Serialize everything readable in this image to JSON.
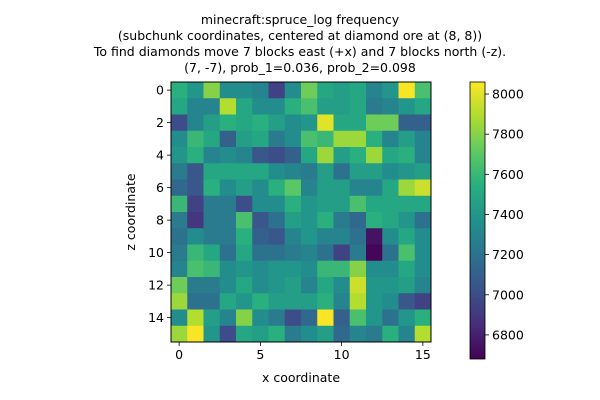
{
  "chart_data": {
    "type": "heatmap",
    "title_lines": [
      "minecraft:spruce_log frequency",
      "(subchunk coordinates, centered at diamond ore at (8, 8))",
      "To find diamonds move 7 blocks east (+x) and 7 blocks north (-z).",
      "(7, -7), prob_1=0.036, prob_2=0.098"
    ],
    "xlabel": "x coordinate",
    "ylabel": "z coordinate",
    "x_ticks": [
      0,
      5,
      10,
      15
    ],
    "y_ticks": [
      0,
      2,
      4,
      6,
      8,
      10,
      12,
      14
    ],
    "x_range": [
      -0.5,
      15.5
    ],
    "y_range": [
      -0.5,
      15.5
    ],
    "colorbar": {
      "colormap": "viridis",
      "vmin": 6680,
      "vmax": 8060,
      "ticks": [
        6800,
        7000,
        7200,
        7400,
        7600,
        7800,
        8000
      ]
    },
    "values": [
      [
        7550,
        7400,
        7800,
        7350,
        7350,
        7300,
        6950,
        7350,
        7750,
        7500,
        7450,
        7500,
        7300,
        7400,
        8050,
        7650
      ],
      [
        7500,
        7300,
        7300,
        7900,
        7500,
        7350,
        7350,
        7550,
        7650,
        7450,
        7450,
        7500,
        7250,
        7300,
        7400,
        7500
      ],
      [
        7000,
        7300,
        7450,
        7550,
        7500,
        7550,
        7450,
        7350,
        7400,
        8000,
        7500,
        7500,
        7750,
        7750,
        7100,
        7100
      ],
      [
        7350,
        7600,
        7500,
        7100,
        7450,
        7500,
        7250,
        7350,
        7650,
        7600,
        7850,
        7850,
        7550,
        7300,
        7450,
        7300
      ],
      [
        7400,
        7550,
        7300,
        7350,
        7300,
        7050,
        7000,
        7100,
        7500,
        7850,
        7450,
        7550,
        7850,
        7500,
        7550,
        7300
      ],
      [
        7250,
        7050,
        7500,
        7500,
        7500,
        7500,
        7350,
        7300,
        7250,
        7450,
        7200,
        7450,
        7450,
        7350,
        7400,
        7450
      ],
      [
        7150,
        7050,
        7550,
        7350,
        7450,
        7350,
        7550,
        7700,
        7300,
        7450,
        7450,
        7300,
        7300,
        7500,
        7850,
        7950
      ],
      [
        7600,
        6950,
        7250,
        7250,
        7000,
        7350,
        7350,
        7550,
        7400,
        7450,
        7450,
        7650,
        7500,
        7500,
        7500,
        7500
      ],
      [
        7250,
        6900,
        7250,
        7250,
        7650,
        7050,
        7200,
        7450,
        7400,
        7550,
        7250,
        7150,
        7550,
        7500,
        7400,
        7200
      ],
      [
        7200,
        7350,
        7250,
        7250,
        7550,
        7100,
        7050,
        7300,
        7400,
        7300,
        7300,
        7200,
        6750,
        7350,
        7500,
        7350
      ],
      [
        7250,
        7600,
        7500,
        7200,
        7500,
        7200,
        7200,
        7250,
        7300,
        7200,
        6950,
        7250,
        6700,
        7200,
        7650,
        7350
      ],
      [
        7300,
        7650,
        7600,
        7350,
        7400,
        7350,
        7400,
        7400,
        7350,
        7600,
        7600,
        7800,
        7350,
        7350,
        7500,
        7350
      ],
      [
        7750,
        7250,
        7250,
        7350,
        7500,
        7350,
        7400,
        7450,
        7300,
        7500,
        7350,
        7950,
        7400,
        7400,
        7450,
        7300
      ],
      [
        7850,
        7200,
        7200,
        7500,
        7400,
        7550,
        7450,
        7450,
        7450,
        7550,
        7300,
        7900,
        7400,
        7350,
        7050,
        6950
      ],
      [
        7350,
        7900,
        7450,
        7300,
        7800,
        7350,
        7250,
        7000,
        7150,
        8050,
        7100,
        7650,
        7400,
        7200,
        7400,
        7550
      ],
      [
        7850,
        8050,
        7400,
        7000,
        7500,
        7450,
        7550,
        7250,
        7350,
        7450,
        7150,
        7300,
        7250,
        7550,
        7300,
        7900
      ]
    ]
  }
}
